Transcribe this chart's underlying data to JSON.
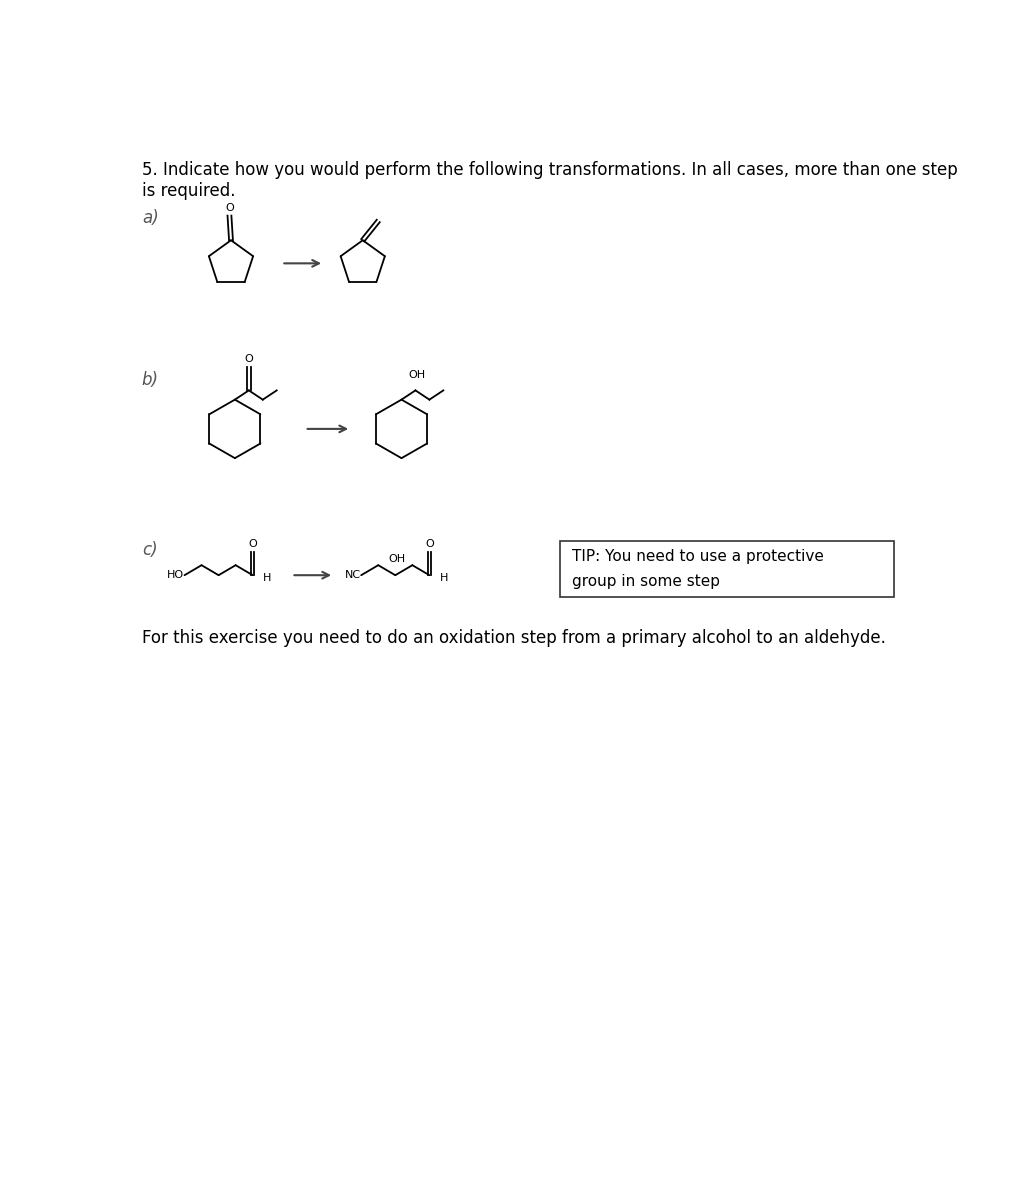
{
  "title_line1": "5. Indicate how you would perform the following transformations. In all cases, more than one step",
  "title_line2": "is required.",
  "label_a": "a)",
  "label_b": "b)",
  "label_c": "c)",
  "footer": "For this exercise you need to do an oxidation step from a primary alcohol to an aldehyde.",
  "tip_line1": "TIP: You need to use a protective",
  "tip_line2": "group in some step",
  "bg_color": "#ffffff",
  "line_color": "#000000",
  "arrow_color": "#444444",
  "font_size_title": 12,
  "font_size_label": 12,
  "font_size_tip": 11,
  "font_size_footer": 12,
  "label_color": "#555555"
}
